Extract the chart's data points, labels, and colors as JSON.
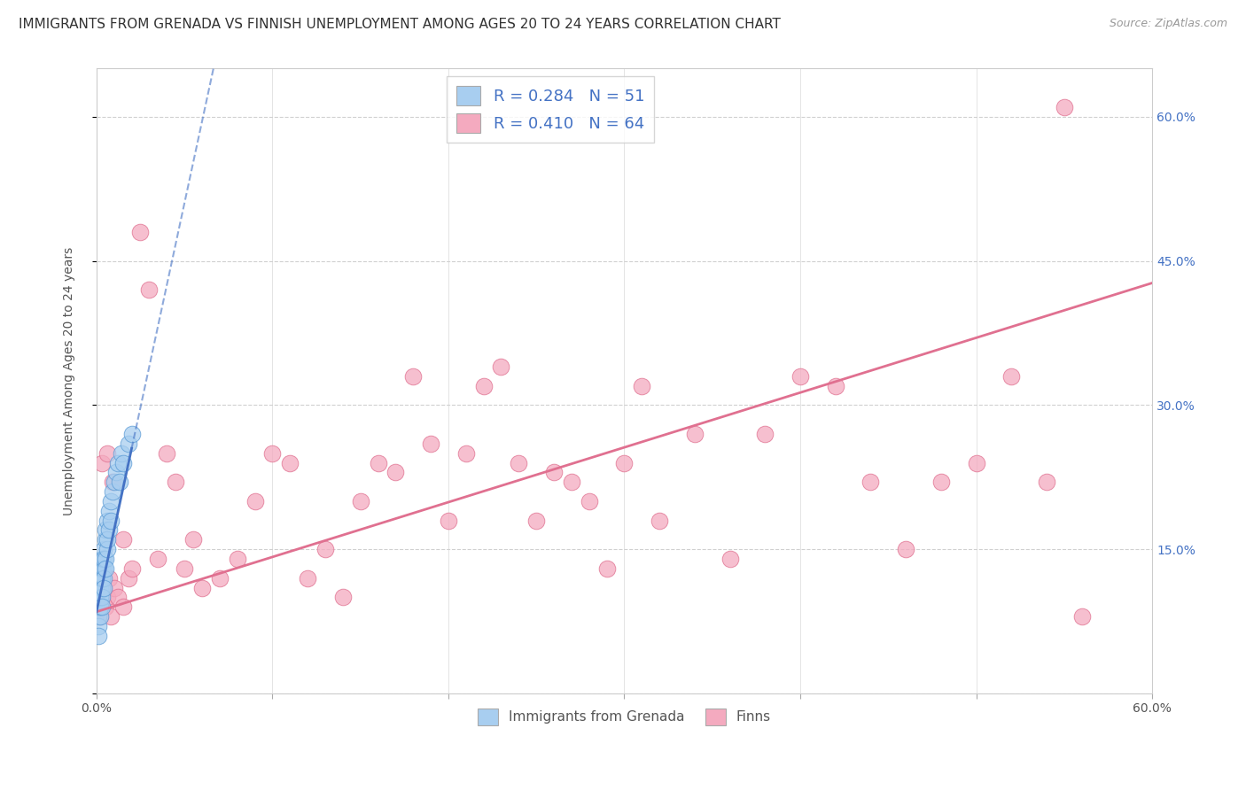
{
  "title": "IMMIGRANTS FROM GRENADA VS FINNISH UNEMPLOYMENT AMONG AGES 20 TO 24 YEARS CORRELATION CHART",
  "source": "Source: ZipAtlas.com",
  "ylabel": "Unemployment Among Ages 20 to 24 years",
  "xlim": [
    0.0,
    0.6
  ],
  "ylim": [
    0.0,
    0.65
  ],
  "xticks": [
    0.0,
    0.1,
    0.2,
    0.3,
    0.4,
    0.5,
    0.6
  ],
  "xtick_labels": [
    "0.0%",
    "",
    "",
    "",
    "",
    "",
    "60.0%"
  ],
  "ytick_positions": [
    0.0,
    0.15,
    0.3,
    0.45,
    0.6
  ],
  "ytick_labels_right": [
    "",
    "15.0%",
    "30.0%",
    "45.0%",
    "60.0%"
  ],
  "blue_R": 0.284,
  "blue_N": 51,
  "pink_R": 0.41,
  "pink_N": 64,
  "blue_color": "#A8CEF0",
  "pink_color": "#F4AABF",
  "blue_edge": "#5B9BD5",
  "pink_edge": "#E07090",
  "blue_line_color": "#4472C4",
  "pink_line_color": "#E07090",
  "legend_label_blue": "Immigrants from Grenada",
  "legend_label_pink": "Finns",
  "background_color": "#ffffff",
  "grid_color": "#d0d0d0",
  "right_tick_color": "#4472C4",
  "blue_x": [
    0.001,
    0.001,
    0.001,
    0.001,
    0.001,
    0.001,
    0.001,
    0.001,
    0.002,
    0.002,
    0.002,
    0.002,
    0.002,
    0.002,
    0.002,
    0.002,
    0.002,
    0.002,
    0.003,
    0.003,
    0.003,
    0.003,
    0.003,
    0.003,
    0.003,
    0.004,
    0.004,
    0.004,
    0.004,
    0.004,
    0.005,
    0.005,
    0.005,
    0.005,
    0.006,
    0.006,
    0.006,
    0.007,
    0.007,
    0.008,
    0.008,
    0.009,
    0.01,
    0.011,
    0.012,
    0.013,
    0.014,
    0.015,
    0.018,
    0.02,
    0.001
  ],
  "blue_y": [
    0.09,
    0.1,
    0.11,
    0.12,
    0.13,
    0.08,
    0.09,
    0.07,
    0.1,
    0.11,
    0.12,
    0.09,
    0.1,
    0.08,
    0.11,
    0.13,
    0.09,
    0.1,
    0.12,
    0.11,
    0.13,
    0.1,
    0.14,
    0.09,
    0.12,
    0.13,
    0.15,
    0.12,
    0.14,
    0.11,
    0.16,
    0.14,
    0.17,
    0.13,
    0.18,
    0.15,
    0.16,
    0.19,
    0.17,
    0.2,
    0.18,
    0.21,
    0.22,
    0.23,
    0.24,
    0.22,
    0.25,
    0.24,
    0.26,
    0.27,
    0.06
  ],
  "pink_x": [
    0.001,
    0.002,
    0.003,
    0.004,
    0.005,
    0.006,
    0.007,
    0.008,
    0.01,
    0.012,
    0.015,
    0.018,
    0.02,
    0.025,
    0.03,
    0.035,
    0.04,
    0.045,
    0.05,
    0.055,
    0.06,
    0.07,
    0.08,
    0.09,
    0.1,
    0.11,
    0.12,
    0.13,
    0.14,
    0.15,
    0.16,
    0.17,
    0.18,
    0.19,
    0.2,
    0.21,
    0.22,
    0.23,
    0.24,
    0.25,
    0.26,
    0.27,
    0.28,
    0.29,
    0.3,
    0.31,
    0.32,
    0.34,
    0.36,
    0.38,
    0.4,
    0.42,
    0.44,
    0.46,
    0.48,
    0.5,
    0.52,
    0.54,
    0.003,
    0.006,
    0.009,
    0.015,
    0.56,
    0.55
  ],
  "pink_y": [
    0.09,
    0.08,
    0.1,
    0.11,
    0.09,
    0.1,
    0.12,
    0.08,
    0.11,
    0.1,
    0.09,
    0.12,
    0.13,
    0.48,
    0.42,
    0.14,
    0.25,
    0.22,
    0.13,
    0.16,
    0.11,
    0.12,
    0.14,
    0.2,
    0.25,
    0.24,
    0.12,
    0.15,
    0.1,
    0.2,
    0.24,
    0.23,
    0.33,
    0.26,
    0.18,
    0.25,
    0.32,
    0.34,
    0.24,
    0.18,
    0.23,
    0.22,
    0.2,
    0.13,
    0.24,
    0.32,
    0.18,
    0.27,
    0.14,
    0.27,
    0.33,
    0.32,
    0.22,
    0.15,
    0.22,
    0.24,
    0.33,
    0.22,
    0.24,
    0.25,
    0.22,
    0.16,
    0.08,
    0.61
  ],
  "blue_intercept": 0.085,
  "blue_slope": 8.5,
  "pink_intercept": 0.085,
  "pink_slope": 0.57
}
